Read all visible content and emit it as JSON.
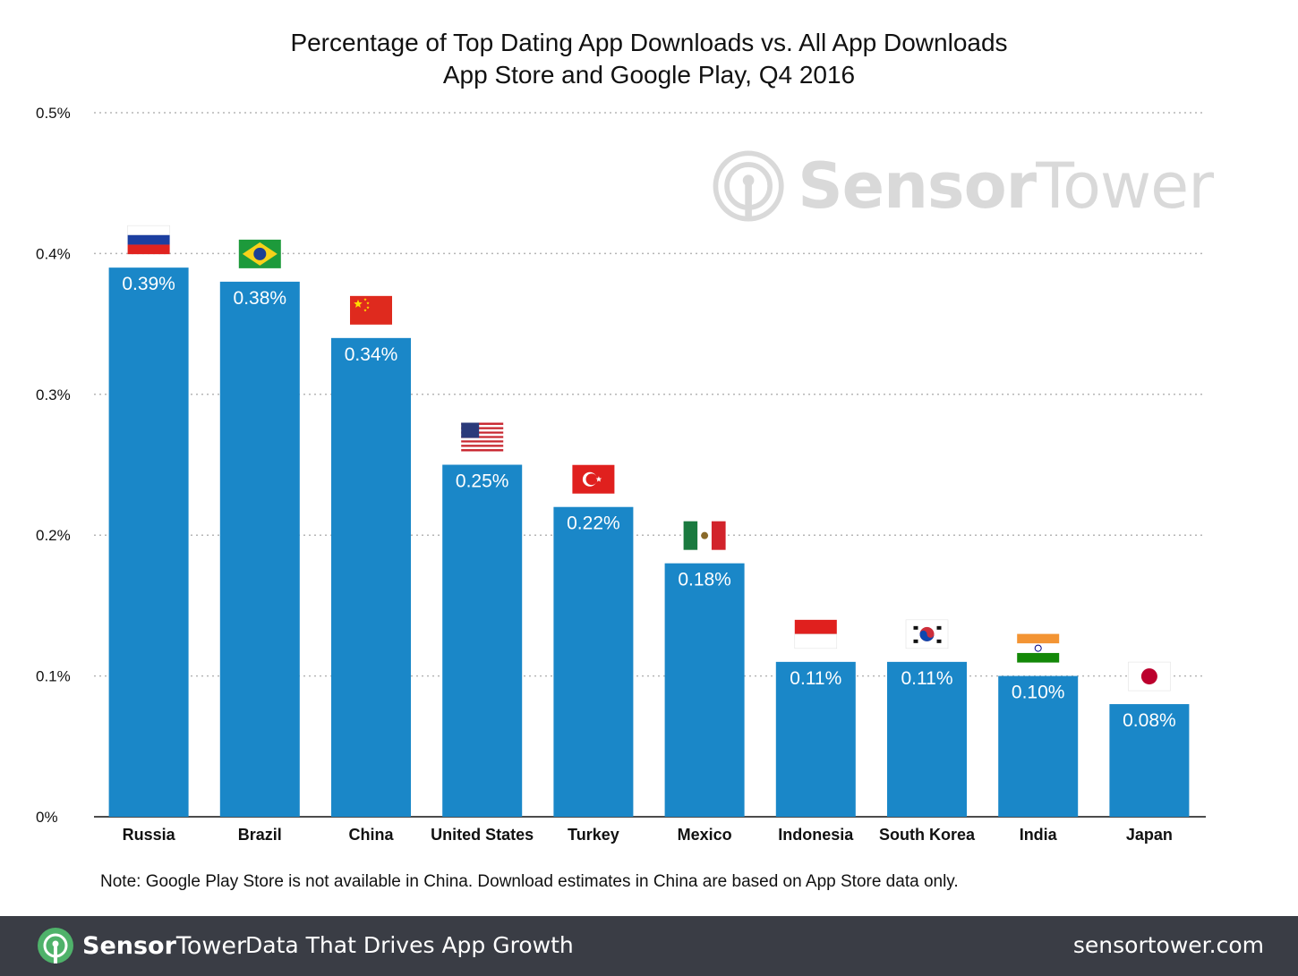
{
  "title": "Percentage of Top Dating App Downloads vs. All App Downloads",
  "subtitle": "App Store and Google Play, Q4 2016",
  "watermark": {
    "prefix": "Sensor",
    "suffix": "Tower"
  },
  "note": "Note: Google Play Store is not available in China. Download estimates in China are based on App Store data only.",
  "footer": {
    "brand_prefix": "Sensor",
    "brand_suffix": "Tower",
    "tagline": "Data That Drives App Growth",
    "site": "sensortower.com"
  },
  "colors": {
    "bar": "#1a87c8",
    "footer": "#3a3d45",
    "logo_green": "#4fb26a"
  },
  "chart_data": {
    "type": "bar",
    "title": "Percentage of Top Dating App Downloads vs. All App Downloads",
    "subtitle": "App Store and Google Play, Q4 2016",
    "xlabel": "",
    "ylabel": "",
    "ylim": [
      0,
      0.5
    ],
    "yticks": [
      0,
      0.1,
      0.2,
      0.3,
      0.4,
      0.5
    ],
    "ytick_labels": [
      "0%",
      "0.1%",
      "0.2%",
      "0.3%",
      "0.4%",
      "0.5%"
    ],
    "grid": "horizontal dotted",
    "categories": [
      "Russia",
      "Brazil",
      "China",
      "United States",
      "Turkey",
      "Mexico",
      "Indonesia",
      "South Korea",
      "India",
      "Japan"
    ],
    "values": [
      0.39,
      0.38,
      0.34,
      0.25,
      0.22,
      0.18,
      0.11,
      0.11,
      0.1,
      0.08
    ],
    "data_labels": [
      "0.39%",
      "0.38%",
      "0.34%",
      "0.25%",
      "0.22%",
      "0.18%",
      "0.11%",
      "0.11%",
      "0.10%",
      "0.08%"
    ],
    "flags": [
      "russia-flag-icon",
      "brazil-flag-icon",
      "china-flag-icon",
      "usa-flag-icon",
      "turkey-flag-icon",
      "mexico-flag-icon",
      "indonesia-flag-icon",
      "south-korea-flag-icon",
      "india-flag-icon",
      "japan-flag-icon"
    ]
  }
}
